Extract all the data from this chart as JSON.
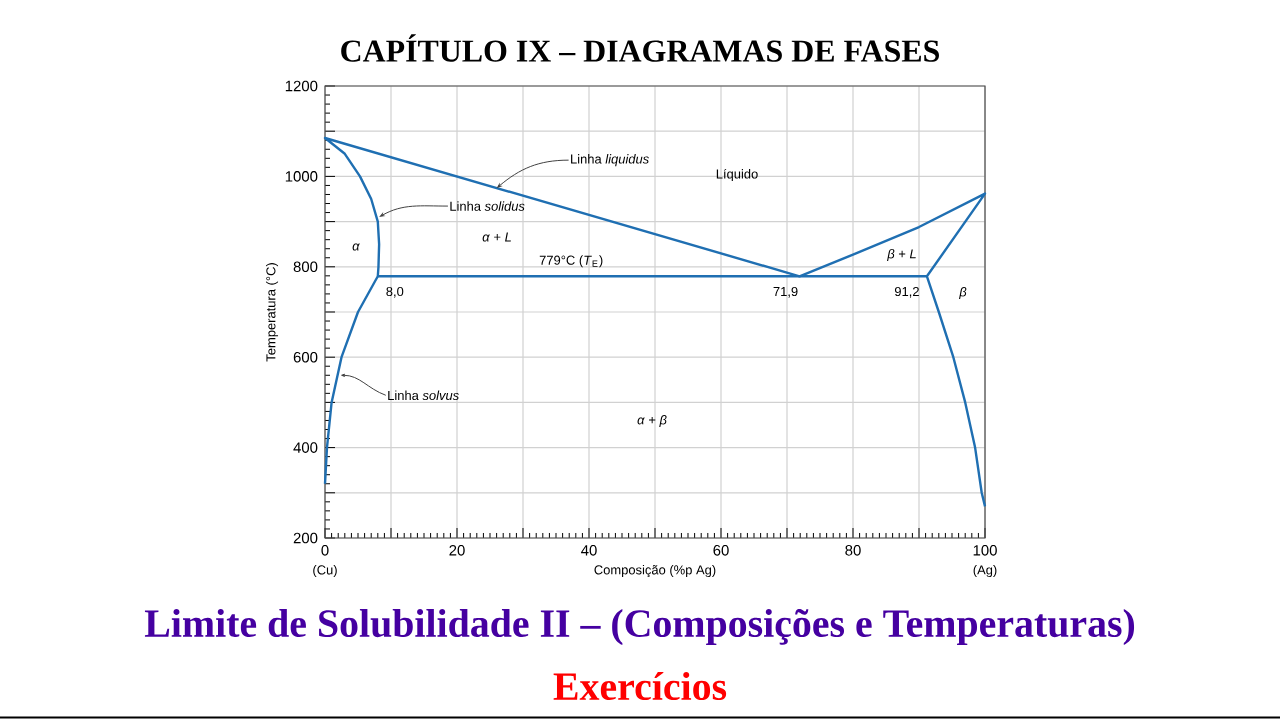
{
  "chart_data": {
    "type": "line",
    "title": "CAPÍTULO IX – DIAGRAMAS DE FASES",
    "subtitle": "Limite de Solubilidade II – (Composições e Temperaturas)",
    "xlabel": "Composição (%p Ag)",
    "ylabel": "Temperatura (°C)",
    "xlim": [
      0,
      100
    ],
    "ylim": [
      200,
      1200
    ],
    "xticks": [
      0,
      {
        "value": 10,
        "label": null
      },
      20,
      {
        "value": 30,
        "label": null
      },
      40,
      {
        "value": 50,
        "label": null
      },
      60,
      {
        "value": 70,
        "label": null
      },
      80,
      {
        "value": 90,
        "label": null
      },
      100
    ],
    "yticks": [
      200,
      {
        "value": 300,
        "label": null
      },
      400,
      {
        "value": 500,
        "label": null
      },
      600,
      {
        "value": 700,
        "label": null
      },
      800,
      {
        "value": 900,
        "label": null
      },
      1000,
      {
        "value": 1100,
        "label": null
      },
      1200
    ],
    "grid": true,
    "series": [
      {
        "color": "#1f6fb2",
        "x": [
          0,
          0.3,
          1,
          2.5,
          5,
          8,
          8.1,
          8.2,
          8,
          7,
          5.3,
          3,
          0,
          71.9,
          80,
          90,
          100,
          91.2,
          93,
          95.2,
          97,
          98.5,
          99.5,
          100
        ],
        "values": [
          320,
          400,
          500,
          600,
          700,
          779,
          800,
          850,
          900,
          950,
          1000,
          1050,
          1085,
          779,
          827,
          888,
          962,
          779,
          700,
          600,
          500,
          400,
          300,
          270
        ]
      },
      {
        "color": "#1f6fb2",
        "x": [
          8,
          91.2
        ],
        "values": [
          779,
          779
        ]
      }
    ],
    "annotations": [
      {
        "text": "Linha *liquidus*",
        "x": 26,
        "y": 974
      },
      {
        "text": "Linha *solidus*",
        "x": 8.2,
        "y": 910
      },
      {
        "text": "Linha *solvus*",
        "x": 2.3,
        "y": 560
      },
      {
        "text": "779°C (*T*$_{E}$)",
        "x": 37.3,
        "y": 779
      },
      {
        "text": "8,0",
        "x": 8,
        "y": 779
      },
      {
        "text": "71,9",
        "x": 71.9,
        "y": 779
      },
      {
        "text": "91,2",
        "x": 91.2,
        "y": 779
      },
      "Líquido",
      "*α*",
      "*α* + *L*",
      "*β* + *L*",
      "*β*",
      "*α* + *β*",
      "(Cu)",
      "(Ag)",
      "Exercícios"
    ]
  }
}
